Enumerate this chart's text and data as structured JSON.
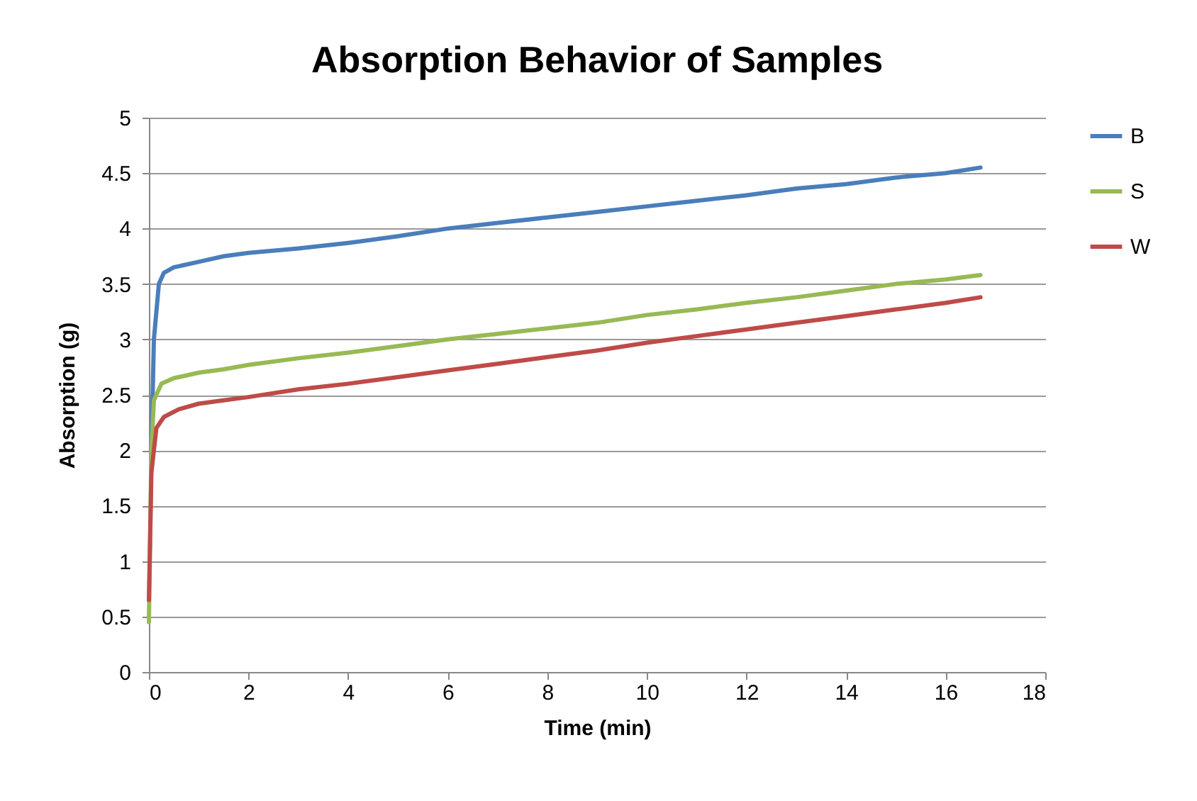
{
  "chart_data": {
    "type": "line",
    "title": "Absorption Behavior of Samples",
    "xlabel": "Time (min)",
    "ylabel": "Absorption (g)",
    "xlim": [
      0,
      18
    ],
    "xticks": [
      0,
      2,
      4,
      6,
      8,
      10,
      12,
      14,
      16,
      18
    ],
    "ylim": [
      0,
      5
    ],
    "yticks": [
      0,
      0.5,
      1,
      1.5,
      2,
      2.5,
      3,
      3.5,
      4,
      4.5,
      5
    ],
    "grid": "y",
    "legend": "right",
    "marker": "none",
    "line_style": "solid",
    "series": [
      {
        "name": "B",
        "color": "#4a7ebb",
        "x": [
          0.05,
          0.1,
          0.2,
          0.3,
          0.5,
          1,
          1.5,
          2,
          3,
          4,
          5,
          6,
          7,
          8,
          9,
          10,
          11,
          12,
          13,
          14,
          15,
          16,
          16.7
        ],
        "values": [
          2.0,
          3.0,
          3.5,
          3.6,
          3.65,
          3.7,
          3.75,
          3.78,
          3.82,
          3.87,
          3.93,
          4.0,
          4.05,
          4.1,
          4.15,
          4.2,
          4.25,
          4.3,
          4.36,
          4.4,
          4.46,
          4.5,
          4.55
        ]
      },
      {
        "name": "S",
        "color": "#98b954",
        "x": [
          0,
          0.05,
          0.1,
          0.25,
          0.5,
          1,
          1.5,
          2,
          3,
          4,
          5,
          6,
          7,
          8,
          9,
          10,
          11,
          12,
          13,
          14,
          15,
          16,
          16.7
        ],
        "values": [
          0.45,
          2.0,
          2.45,
          2.6,
          2.65,
          2.7,
          2.73,
          2.77,
          2.83,
          2.88,
          2.94,
          3.0,
          3.05,
          3.1,
          3.15,
          3.22,
          3.27,
          3.33,
          3.38,
          3.44,
          3.5,
          3.54,
          3.58
        ]
      },
      {
        "name": "W",
        "color": "#be4b48",
        "x": [
          0,
          0.05,
          0.15,
          0.3,
          0.6,
          1,
          1.5,
          2,
          3,
          4,
          5,
          6,
          7,
          8,
          9,
          10,
          11,
          12,
          13,
          14,
          15,
          16,
          16.7
        ],
        "values": [
          0.65,
          1.8,
          2.2,
          2.3,
          2.37,
          2.42,
          2.45,
          2.48,
          2.55,
          2.6,
          2.66,
          2.72,
          2.78,
          2.84,
          2.9,
          2.97,
          3.03,
          3.09,
          3.15,
          3.21,
          3.27,
          3.33,
          3.38
        ]
      }
    ]
  }
}
